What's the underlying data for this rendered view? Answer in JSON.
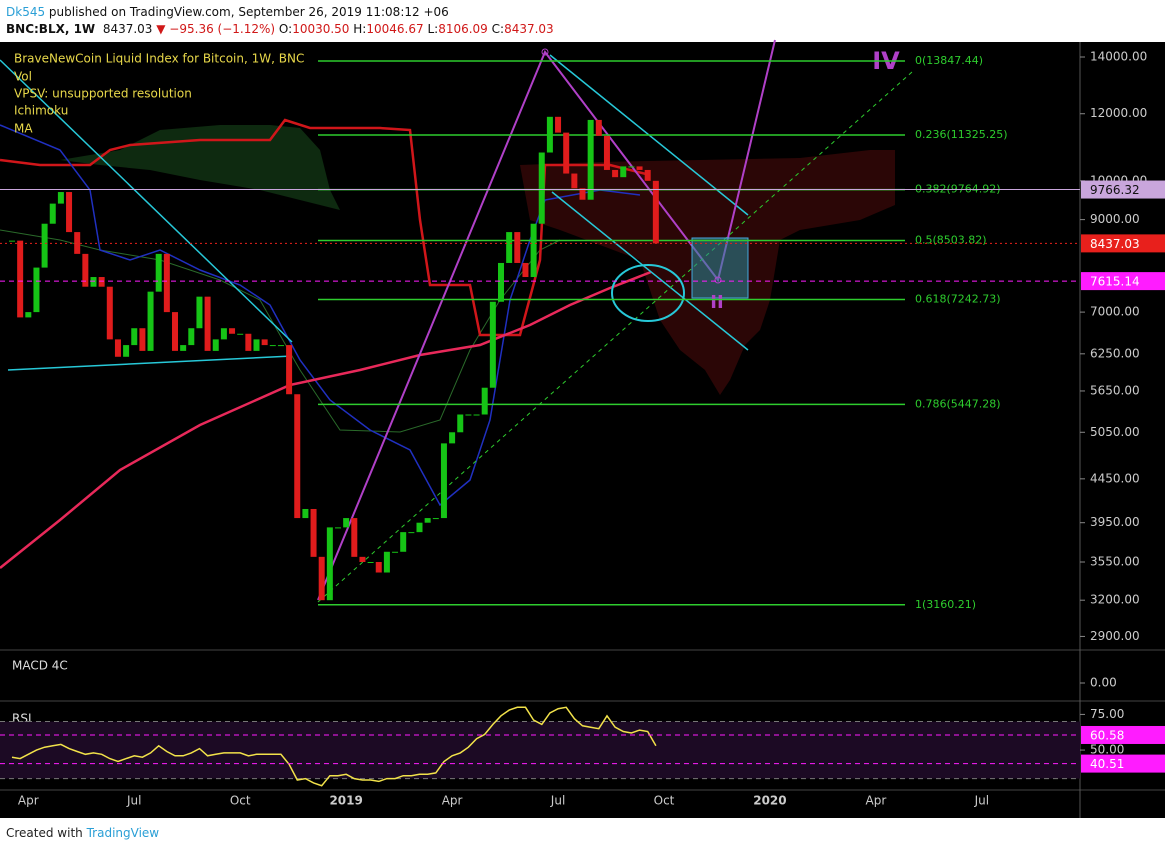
{
  "header": {
    "author": "Dk545",
    "published": "published on TradingView.com, September 26, 2019 11:08:12 +06",
    "symbol": "BNC:BLX, 1W",
    "last": "8437.03",
    "change": "▼ −95.36 (−1.12%)",
    "ohlc": [
      {
        "label": "O:",
        "value": "10030.50"
      },
      {
        "label": "H:",
        "value": "10046.67"
      },
      {
        "label": "L:",
        "value": "8106.09"
      },
      {
        "label": "C:",
        "value": "8437.03"
      }
    ]
  },
  "chart_data": [
    {
      "type": "candlestick",
      "title": "BraveNewCoin Liquid Index for Bitcoin, 1W, BNC",
      "indicators": [
        "Vol",
        "VPSV: unsupported resolution",
        "Ichimoku",
        "MA"
      ],
      "annotations": [
        "IV",
        "II"
      ],
      "categories": [
        null,
        null,
        "Apr",
        null,
        null,
        null,
        null,
        null,
        null,
        null,
        null,
        null,
        null,
        null,
        null,
        "Jul",
        null,
        null,
        null,
        null,
        null,
        null,
        null,
        null,
        null,
        null,
        null,
        null,
        "Oct",
        null,
        null,
        null,
        null,
        null,
        null,
        null,
        null,
        null,
        null,
        null,
        null,
        "2019",
        null,
        null,
        null,
        null,
        null,
        null,
        null,
        null,
        null,
        null,
        null,
        null,
        "Apr",
        null,
        null,
        null,
        null,
        null,
        null,
        null,
        null,
        null,
        null,
        null,
        null,
        "Jul",
        null,
        null,
        null,
        null,
        null,
        null,
        null,
        null,
        null,
        null,
        null,
        null,
        "Oct",
        null,
        null,
        null,
        null,
        null,
        null,
        null,
        null,
        null,
        null,
        null,
        null,
        "2020",
        null,
        null,
        null,
        null,
        null,
        null,
        null,
        null,
        null,
        null,
        null,
        null,
        "Apr",
        null,
        null,
        null,
        null,
        null,
        null,
        null,
        null,
        null,
        null,
        null,
        null,
        "Jul",
        null,
        null,
        null,
        null,
        null,
        null,
        null,
        null,
        null,
        null,
        null
      ],
      "values": [
        8500,
        6900,
        7000,
        7900,
        8900,
        9400,
        9700,
        8700,
        8200,
        7500,
        7700,
        7500,
        6500,
        6200,
        6400,
        6700,
        6300,
        7400,
        8200,
        7000,
        6300,
        6400,
        6700,
        7300,
        6300,
        6500,
        6700,
        6600,
        6600,
        6300,
        6500,
        6400,
        6400,
        6400,
        5600,
        4000,
        4100,
        3600,
        3200,
        3900,
        3900,
        4000,
        3600,
        3550,
        3550,
        3450,
        3650,
        3650,
        3850,
        3850,
        3950,
        4000,
        4000,
        4900,
        5050,
        5300,
        5300,
        5300,
        5700,
        7200,
        8000,
        8700,
        8000,
        7700,
        8900,
        10800,
        11900,
        11400,
        10200,
        9800,
        9500,
        11800,
        11300,
        10300,
        10100,
        10400,
        10400,
        10300,
        10000,
        8437.03,
        null,
        null,
        null,
        null,
        null,
        null,
        null,
        null,
        null,
        null,
        null,
        null,
        null,
        null,
        null,
        null,
        null,
        null,
        null,
        null,
        null,
        null,
        null,
        null,
        null,
        null,
        null,
        null,
        null,
        null,
        null,
        null,
        null,
        null,
        null,
        null,
        null,
        null,
        null,
        null,
        null,
        null,
        null,
        null,
        null,
        null,
        null,
        null,
        null,
        null,
        null
      ],
      "up_color": "#16c416",
      "down_color": "#e01c1c",
      "log_scale": true,
      "ylim": [
        2795,
        14464
      ],
      "yticks": [
        {
          "value": 14000,
          "label": "14000.00"
        },
        {
          "value": 12000,
          "label": "12000.00"
        },
        {
          "value": 10000,
          "label": "10000.00"
        },
        {
          "value": 9000,
          "label": "9000.00"
        },
        {
          "value": 7000,
          "label": "7000.00"
        },
        {
          "value": 6250,
          "label": "6250.00"
        },
        {
          "value": 5650,
          "label": "5650.00"
        },
        {
          "value": 5050,
          "label": "5050.00"
        },
        {
          "value": 4450,
          "label": "4450.00"
        },
        {
          "value": 3950,
          "label": "3950.00"
        },
        {
          "value": 3550,
          "label": "3550.00"
        },
        {
          "value": 3200,
          "label": "3200.00"
        },
        {
          "value": 2900,
          "label": "2900.00"
        }
      ],
      "fib_levels": [
        {
          "label": "0(13847.44)",
          "price": 13847.44
        },
        {
          "label": "0.236(11325.25)",
          "price": 11325.25
        },
        {
          "label": "0.382(9764.92)",
          "price": 9764.92
        },
        {
          "label": "0.5(8503.82)",
          "price": 8503.82
        },
        {
          "label": "0.618(7242.73)",
          "price": 7242.73
        },
        {
          "label": "0.786(5447.28)",
          "price": 5447.28
        },
        {
          "label": "1(3160.21)",
          "price": 3160.21
        }
      ],
      "fib_color": "#2ecc2e",
      "price_markers": [
        {
          "value": 9766.32,
          "color": "#c9a6dc",
          "text_color": "#111111",
          "line": "solid"
        },
        {
          "value": 8437.03,
          "color": "#e8201c",
          "text_color": "#ffffff",
          "line": "dotted"
        },
        {
          "value": 7615.14,
          "color": "#ff1cff",
          "text_color": "#ffffff",
          "line": "dashed"
        }
      ]
    },
    {
      "type": "indicator",
      "title": "MACD 4C",
      "yticks": [
        {
          "value": 0,
          "label": "0.00"
        }
      ]
    },
    {
      "type": "line",
      "title": "RSI",
      "color": "#f2e24a",
      "values": [
        45,
        44,
        47,
        50,
        52,
        53,
        54,
        51,
        49,
        47,
        48,
        47,
        44,
        42,
        44,
        46,
        45,
        48,
        53,
        49,
        46,
        46,
        48,
        51,
        46,
        47,
        48,
        48,
        48,
        46,
        47,
        47,
        47,
        47,
        40,
        29,
        30,
        27,
        25,
        32,
        32,
        33,
        30,
        29,
        29,
        28,
        30,
        30,
        32,
        32,
        33,
        33,
        34,
        42,
        46,
        48,
        52,
        58,
        61,
        68,
        74,
        78,
        80,
        80,
        71,
        68,
        76,
        79,
        80,
        72,
        67,
        66,
        65,
        74,
        66,
        63,
        62,
        64,
        63,
        53,
        null,
        null,
        null,
        null,
        null,
        null,
        null,
        null,
        null,
        null,
        null,
        null,
        null,
        null,
        null,
        null,
        null,
        null,
        null,
        null,
        null,
        null,
        null,
        null,
        null,
        null,
        null,
        null,
        null,
        null,
        null,
        null,
        null,
        null,
        null,
        null,
        null,
        null,
        null,
        null,
        null,
        null,
        null,
        null,
        null,
        null,
        null,
        null,
        null,
        null,
        null
      ],
      "ylim": [
        22,
        83
      ],
      "yticks": [
        {
          "value": 75,
          "label": "75.00"
        },
        {
          "value": 50,
          "label": "50.00"
        }
      ],
      "bands": [
        30,
        70
      ],
      "price_markers": [
        {
          "value": 60.58,
          "color": "#ff1cff",
          "text_color": "#ffffff",
          "line": "dashed"
        },
        {
          "value": 40.51,
          "color": "#ff1cff",
          "text_color": "#ffffff",
          "line": "dashed"
        }
      ]
    }
  ],
  "footer": {
    "created": "Created with",
    "brand": "TradingView"
  }
}
